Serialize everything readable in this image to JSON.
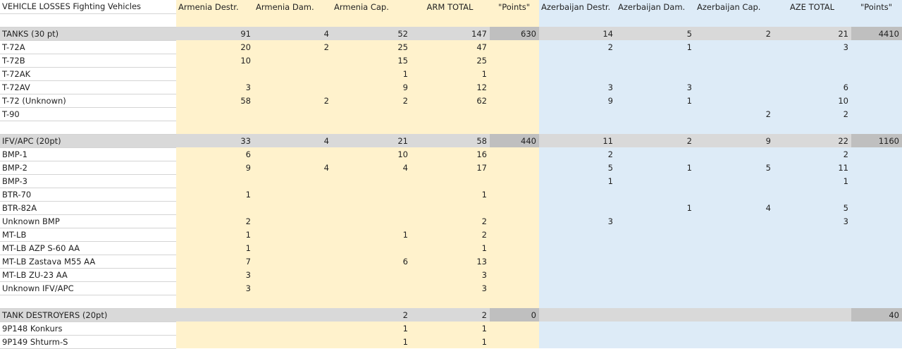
{
  "title": "VEHICLE LOSSES Fighting Vehicles",
  "headers": [
    "Armenia Destr.",
    "Armenia Dam.",
    "Armenia Cap.",
    "ARM TOTAL",
    "\"Points\"",
    "Azerbaijan Destr.",
    "Azerbaijan Dam.",
    "Azerbaijan Cap.",
    "AZE TOTAL",
    "\"Points\""
  ],
  "colors": {
    "armenia_bg": "#fff2cc",
    "azerbaijan_bg": "#ddebf7",
    "group_row_bg": "#d9d9d9",
    "points_bg": "#bfbfbf"
  },
  "rows": [
    {
      "type": "blank",
      "cells": [
        "",
        "",
        "",
        "",
        "",
        "",
        "",
        "",
        "",
        "",
        ""
      ]
    },
    {
      "type": "group",
      "cells": [
        "TANKS (30 pt)",
        "91",
        "4",
        "52",
        "147",
        "630",
        "14",
        "5",
        "2",
        "21",
        "4410"
      ]
    },
    {
      "type": "item",
      "cells": [
        "T-72A",
        "20",
        "2",
        "25",
        "47",
        "",
        "2",
        "1",
        "",
        "3",
        ""
      ]
    },
    {
      "type": "item",
      "cells": [
        "T-72B",
        "10",
        "",
        "15",
        "25",
        "",
        "",
        "",
        "",
        "",
        ""
      ]
    },
    {
      "type": "item",
      "cells": [
        "T-72AK",
        "",
        "",
        "1",
        "1",
        "",
        "",
        "",
        "",
        "",
        ""
      ]
    },
    {
      "type": "item",
      "cells": [
        "T-72AV",
        "3",
        "",
        "9",
        "12",
        "",
        "3",
        "3",
        "",
        "6",
        ""
      ]
    },
    {
      "type": "item",
      "cells": [
        "T-72 (Unknown)",
        "58",
        "2",
        "2",
        "62",
        "",
        "9",
        "1",
        "",
        "10",
        ""
      ]
    },
    {
      "type": "item",
      "cells": [
        "T-90",
        "",
        "",
        "",
        "",
        "",
        "",
        "",
        "2",
        "2",
        ""
      ]
    },
    {
      "type": "blank",
      "cells": [
        "",
        "",
        "",
        "",
        "",
        "",
        "",
        "",
        "",
        "",
        ""
      ]
    },
    {
      "type": "group",
      "cells": [
        "IFV/APC (20pt)",
        "33",
        "4",
        "21",
        "58",
        "440",
        "11",
        "2",
        "9",
        "22",
        "1160"
      ]
    },
    {
      "type": "item",
      "cells": [
        "BMP-1",
        "6",
        "",
        "10",
        "16",
        "",
        "2",
        "",
        "",
        "2",
        ""
      ]
    },
    {
      "type": "item",
      "cells": [
        "BMP-2",
        "9",
        "4",
        "4",
        "17",
        "",
        "5",
        "1",
        "5",
        "11",
        ""
      ]
    },
    {
      "type": "item",
      "cells": [
        "BMP-3",
        "",
        "",
        "",
        "",
        "",
        "1",
        "",
        "",
        "1",
        ""
      ]
    },
    {
      "type": "item",
      "cells": [
        "BTR-70",
        "1",
        "",
        "",
        "1",
        "",
        "",
        "",
        "",
        "",
        ""
      ]
    },
    {
      "type": "item",
      "cells": [
        "BTR-82A",
        "",
        "",
        "",
        "",
        "",
        "",
        "1",
        "4",
        "5",
        ""
      ]
    },
    {
      "type": "item",
      "cells": [
        "Unknown BMP",
        "2",
        "",
        "",
        "2",
        "",
        "3",
        "",
        "",
        "3",
        ""
      ]
    },
    {
      "type": "item",
      "cells": [
        "MT-LB",
        "1",
        "",
        "1",
        "2",
        "",
        "",
        "",
        "",
        "",
        ""
      ]
    },
    {
      "type": "item",
      "cells": [
        "MT-LB AZP S-60 AA",
        "1",
        "",
        "",
        "1",
        "",
        "",
        "",
        "",
        "",
        ""
      ]
    },
    {
      "type": "item",
      "cells": [
        "MT-LB Zastava M55 AA",
        "7",
        "",
        "6",
        "13",
        "",
        "",
        "",
        "",
        "",
        ""
      ]
    },
    {
      "type": "item",
      "cells": [
        "MT-LB ZU-23 AA",
        "3",
        "",
        "",
        "3",
        "",
        "",
        "",
        "",
        "",
        ""
      ]
    },
    {
      "type": "item",
      "cells": [
        "Unknown IFV/APC",
        "3",
        "",
        "",
        "3",
        "",
        "",
        "",
        "",
        "",
        ""
      ]
    },
    {
      "type": "blank",
      "cells": [
        "",
        "",
        "",
        "",
        "",
        "",
        "",
        "",
        "",
        "",
        ""
      ]
    },
    {
      "type": "group",
      "cells": [
        "TANK DESTROYERS (20pt)",
        "",
        "",
        "2",
        "2",
        "0",
        "",
        "",
        "",
        "",
        "40"
      ]
    },
    {
      "type": "item",
      "cells": [
        "9P148 Konkurs",
        "",
        "",
        "1",
        "1",
        "",
        "",
        "",
        "",
        "",
        ""
      ]
    },
    {
      "type": "item",
      "cells": [
        "9P149 Shturm-S",
        "",
        "",
        "1",
        "1",
        "",
        "",
        "",
        "",
        "",
        ""
      ]
    }
  ]
}
